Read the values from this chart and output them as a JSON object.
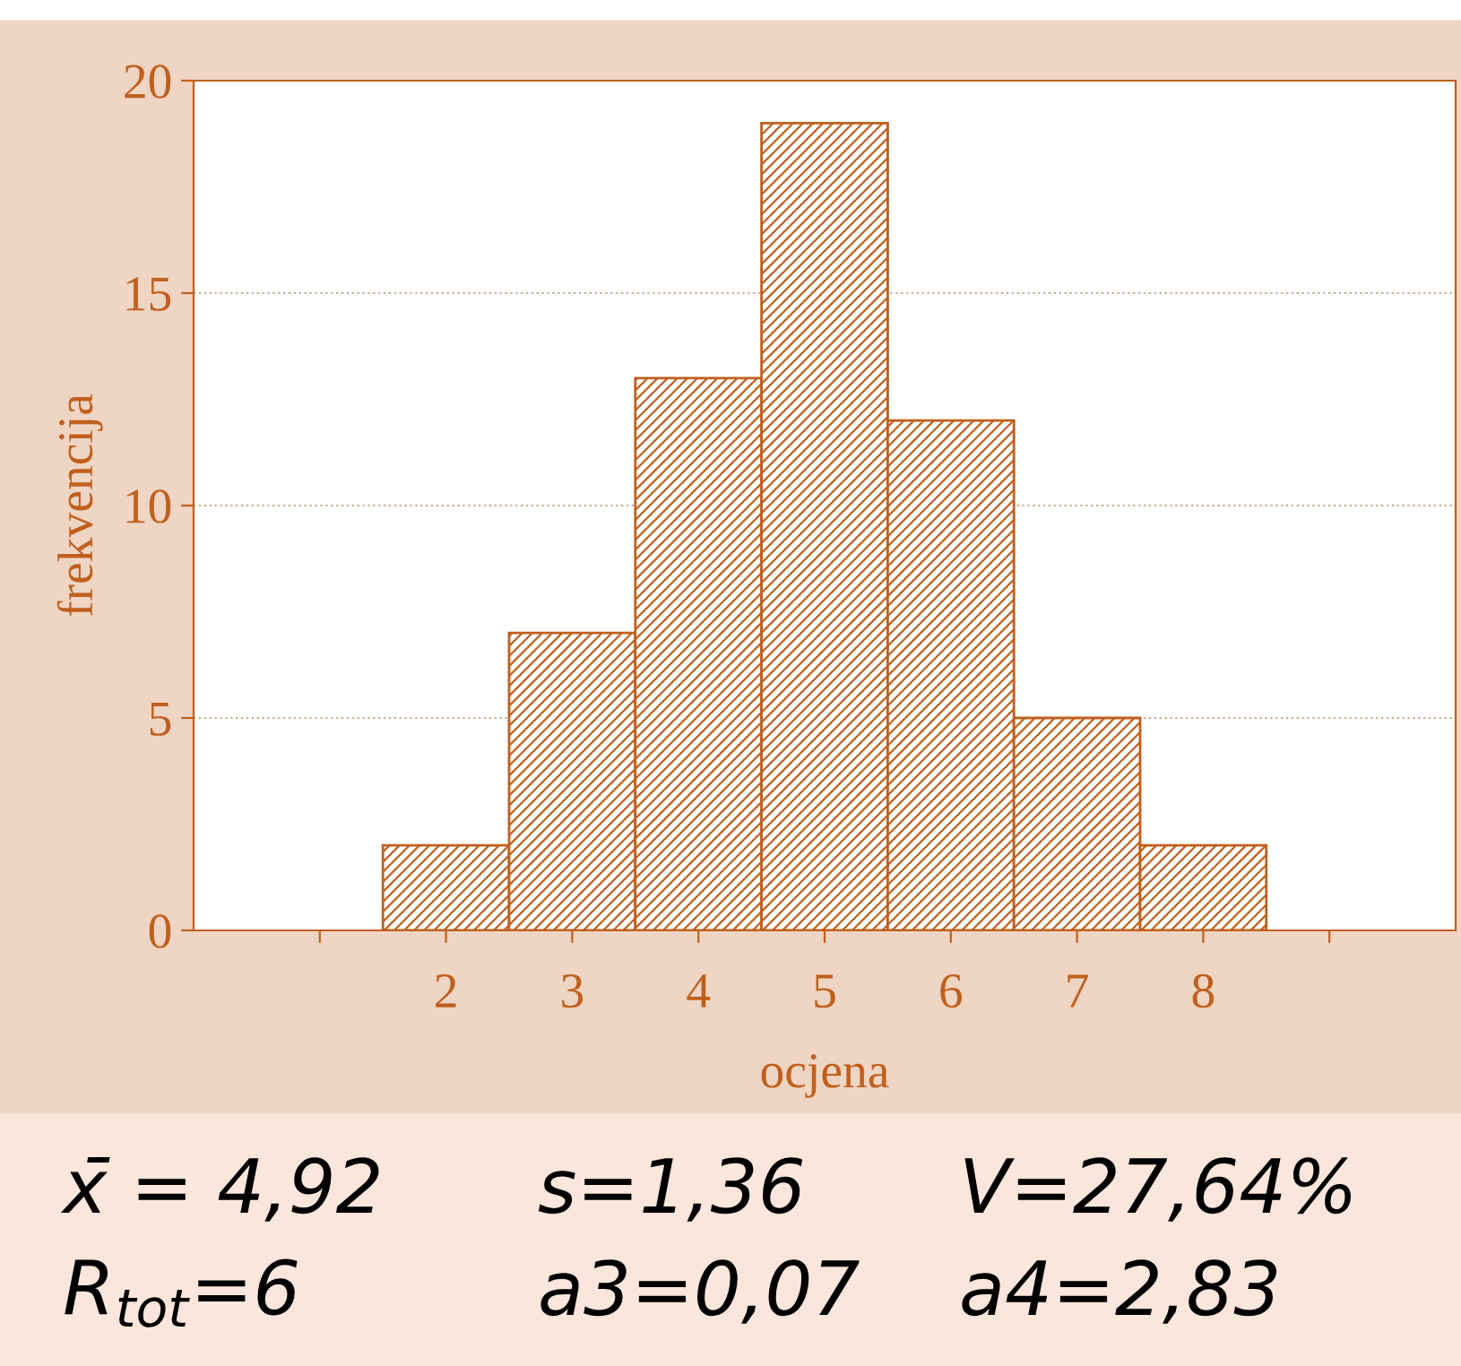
{
  "chart_data": {
    "type": "bar",
    "xlabel": "ocjena",
    "ylabel": "frekvencija",
    "categories": [
      null,
      "2",
      "3",
      "4",
      "5",
      "6",
      "7",
      "8",
      null
    ],
    "values": [
      null,
      2,
      7,
      13,
      19,
      12,
      5,
      2,
      null
    ],
    "color": "#c0601e",
    "ylim": [
      0,
      20
    ],
    "yticks": [
      0,
      5,
      10,
      15,
      20
    ],
    "grid": "y",
    "annotations": [
      "x̄ = 4,92",
      "s=1,36",
      "V=27,64%",
      "R$_{tot}$=6",
      "a3=0,07",
      "a4=2,83"
    ]
  }
}
